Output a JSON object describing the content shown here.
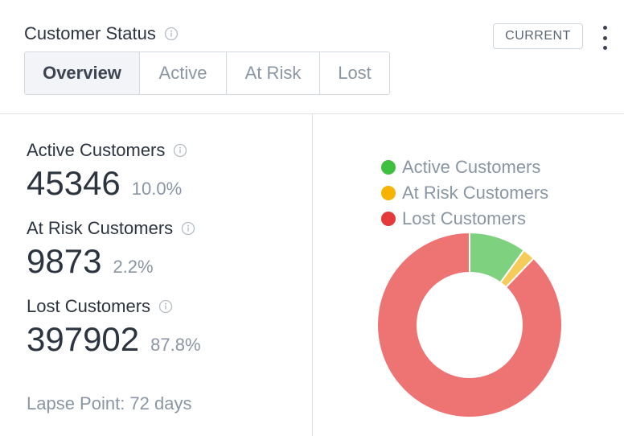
{
  "header": {
    "title": "Customer Status",
    "badge": "CURRENT",
    "tabs": [
      {
        "label": "Overview",
        "selected": true
      },
      {
        "label": "Active",
        "selected": false
      },
      {
        "label": "At Risk",
        "selected": false
      },
      {
        "label": "Lost",
        "selected": false
      }
    ]
  },
  "stats": [
    {
      "label": "Active Customers",
      "value": "45346",
      "percent": "10.0%"
    },
    {
      "label": "At Risk Customers",
      "value": "9873",
      "percent": "2.2%"
    },
    {
      "label": "Lost Customers",
      "value": "397902",
      "percent": "87.8%"
    }
  ],
  "lapse_point": "Lapse Point: 72 days",
  "colors": {
    "active": "#7ed17e",
    "at_risk": "#f5cc5a",
    "lost": "#ee7474",
    "legend_active": "#3fbf3f",
    "legend_at_risk": "#f5b400",
    "legend_lost": "#e53a3a"
  },
  "icons": {
    "info": "info-circle-icon",
    "menu": "kebab-menu-icon"
  },
  "chart_data": {
    "type": "pie",
    "variant": "donut",
    "categories": [
      "Active Customers",
      "At Risk Customers",
      "Lost Customers"
    ],
    "values": [
      45346,
      9873,
      397902
    ],
    "legend": [
      "Active Customers",
      "At Risk Customers",
      "Lost Customers"
    ],
    "legend_position": "top"
  }
}
